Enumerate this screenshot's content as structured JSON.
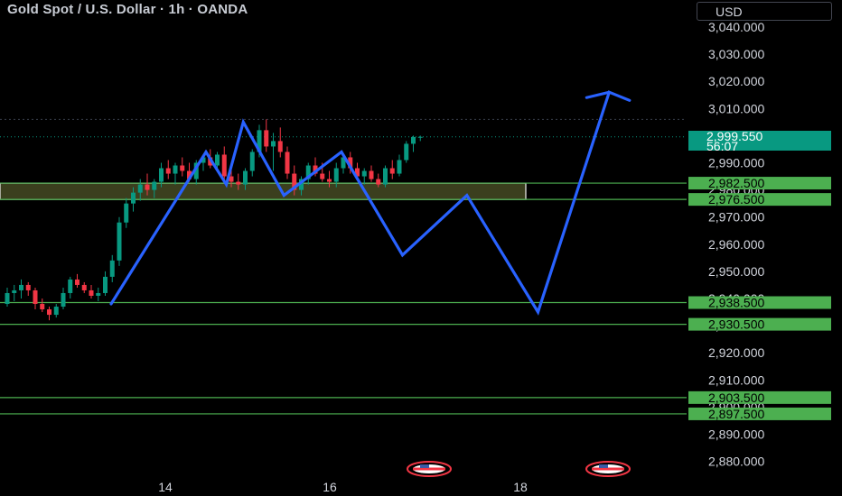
{
  "header": {
    "title": "Gold Spot / U.S. Dollar · 1h · OANDA",
    "currency": "USD"
  },
  "last_price": {
    "value": "2,999.550",
    "countdown": "56:07",
    "color": "#089981"
  },
  "colors": {
    "up": "#089981",
    "down": "#f23645",
    "projection": "#2962ff",
    "level": "#4caf50",
    "zone_fill": "#3b3f1e"
  },
  "chart_data": {
    "type": "candlestick",
    "x_ticks": [
      "14",
      "16",
      "18"
    ],
    "y_ticks": [
      "3,040.000",
      "3,030.000",
      "3,020.000",
      "3,010.000",
      "2,990.000",
      "2,980.000",
      "2,970.000",
      "2,960.000",
      "2,950.000",
      "2,940.000",
      "2,930.000",
      "2,920.000",
      "2,910.000",
      "2,900.000",
      "2,890.000",
      "2,880.000"
    ],
    "ylim": [
      2874,
      3046
    ],
    "horizontal_levels": [
      {
        "value": 2982.5,
        "label": "2,982.500"
      },
      {
        "value": 2976.5,
        "label": "2,976.500"
      },
      {
        "value": 2938.5,
        "label": "2,938.500"
      },
      {
        "value": 2930.5,
        "label": "2,930.500"
      },
      {
        "value": 2903.5,
        "label": "2,903.500"
      },
      {
        "value": 2897.5,
        "label": "2,897.500"
      }
    ],
    "zone": {
      "low": 2976.5,
      "high": 2982.5
    },
    "high_dotted_level": 3006,
    "current_price": 2999.55,
    "candles": [
      [
        2938,
        2944,
        2937,
        2942
      ],
      [
        2942,
        2945,
        2939,
        2943
      ],
      [
        2943,
        2947,
        2940,
        2945
      ],
      [
        2945,
        2946,
        2941,
        2943
      ],
      [
        2943,
        2944,
        2936,
        2938
      ],
      [
        2938,
        2940,
        2935,
        2936
      ],
      [
        2936,
        2937,
        2932,
        2934
      ],
      [
        2934,
        2938,
        2933,
        2937
      ],
      [
        2937,
        2944,
        2936,
        2942
      ],
      [
        2942,
        2948,
        2940,
        2947
      ],
      [
        2947,
        2949,
        2944,
        2945
      ],
      [
        2945,
        2946,
        2942,
        2943
      ],
      [
        2943,
        2945,
        2940,
        2941
      ],
      [
        2941,
        2944,
        2939,
        2942
      ],
      [
        2942,
        2950,
        2941,
        2948
      ],
      [
        2948,
        2956,
        2946,
        2954
      ],
      [
        2954,
        2970,
        2952,
        2968
      ],
      [
        2968,
        2977,
        2966,
        2975
      ],
      [
        2975,
        2981,
        2972,
        2979
      ],
      [
        2979,
        2984,
        2976,
        2982
      ],
      [
        2982,
        2986,
        2978,
        2980
      ],
      [
        2980,
        2984,
        2977,
        2983
      ],
      [
        2983,
        2990,
        2981,
        2988
      ],
      [
        2988,
        2991,
        2984,
        2986
      ],
      [
        2986,
        2990,
        2982,
        2989
      ],
      [
        2989,
        2992,
        2985,
        2987
      ],
      [
        2987,
        2990,
        2983,
        2984
      ],
      [
        2984,
        2991,
        2982,
        2990
      ],
      [
        2990,
        2993,
        2987,
        2992
      ],
      [
        2992,
        2995,
        2988,
        2989
      ],
      [
        2989,
        2994,
        2987,
        2993
      ],
      [
        2993,
        2996,
        2984,
        2985
      ],
      [
        2985,
        2988,
        2981,
        2983
      ],
      [
        2983,
        2986,
        2980,
        2982
      ],
      [
        2982,
        2988,
        2980,
        2987
      ],
      [
        2987,
        2995,
        2985,
        2994
      ],
      [
        2994,
        3004,
        2992,
        3002
      ],
      [
        3002,
        3006,
        2994,
        2996
      ],
      [
        2996,
        3001,
        2987,
        2998
      ],
      [
        2998,
        3003,
        2992,
        2994
      ],
      [
        2994,
        2996,
        2984,
        2986
      ],
      [
        2986,
        2989,
        2978,
        2980
      ],
      [
        2980,
        2985,
        2978,
        2984
      ],
      [
        2984,
        2990,
        2982,
        2989
      ],
      [
        2989,
        2992,
        2985,
        2986
      ],
      [
        2986,
        2990,
        2983,
        2984
      ],
      [
        2984,
        2987,
        2981,
        2983
      ],
      [
        2983,
        2990,
        2981,
        2988
      ],
      [
        2988,
        2993,
        2986,
        2992
      ],
      [
        2992,
        2994,
        2986,
        2988
      ],
      [
        2988,
        2990,
        2984,
        2985
      ],
      [
        2985,
        2988,
        2982,
        2987
      ],
      [
        2987,
        2989,
        2983,
        2984
      ],
      [
        2984,
        2986,
        2981,
        2982
      ],
      [
        2982,
        2989,
        2981,
        2988
      ],
      [
        2988,
        2991,
        2984,
        2986
      ],
      [
        2986,
        2993,
        2985,
        2991
      ],
      [
        2991,
        2998,
        2990,
        2997
      ],
      [
        2997,
        3000,
        2994,
        2999.5
      ],
      [
        2999.5,
        3000,
        2998,
        2999.55
      ]
    ],
    "projection_path": [
      {
        "date": "13 08:00",
        "value": 2938
      },
      {
        "date": "14 12:00",
        "value": 2994
      },
      {
        "date": "14 18:00",
        "value": 2982
      },
      {
        "date": "14 23:00",
        "value": 3005
      },
      {
        "date": "15 11:00",
        "value": 2978
      },
      {
        "date": "16 04:00",
        "value": 2994
      },
      {
        "date": "16 22:00",
        "value": 2956
      },
      {
        "date": "17 17:00",
        "value": 2978
      },
      {
        "date": "18 14:00",
        "value": 2935
      },
      {
        "date": "19 11:00",
        "value": 3016
      },
      {
        "date": "19 17:00",
        "value": 3013
      }
    ],
    "events": [
      {
        "icon": "us-flag-icon",
        "near_tick": "16"
      },
      {
        "icon": "us-flag-icon",
        "near_tick": "18"
      }
    ]
  }
}
